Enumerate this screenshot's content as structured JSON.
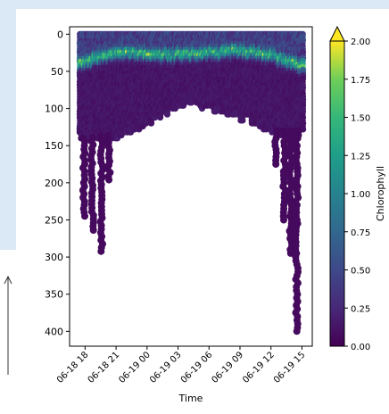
{
  "chart_data": {
    "type": "scatter",
    "xlabel": "Time",
    "ylabel": "",
    "x_ticks": [
      "06-18 18",
      "06-18 21",
      "06-19 00",
      "06-19 03",
      "06-19 06",
      "06-19 09",
      "06-19 12",
      "06-19 15"
    ],
    "x_range_hours": [
      -1.5,
      22.0
    ],
    "y_ticks": [
      0,
      50,
      100,
      150,
      200,
      250,
      300,
      350,
      400
    ],
    "ylim": [
      420,
      -10
    ],
    "y_inverted": true,
    "colorbar": {
      "label": "Chlorophyll",
      "ticks": [
        "0.00",
        "0.25",
        "0.50",
        "0.75",
        "1.00",
        "1.25",
        "1.50",
        "1.75",
        "2.00"
      ],
      "range": [
        0,
        2.0
      ],
      "colormap": "viridis",
      "extend": "max"
    },
    "deep_profiles": [
      {
        "t": -0.1,
        "depth": 245
      },
      {
        "t": 0.7,
        "depth": 265
      },
      {
        "t": 1.6,
        "depth": 295
      },
      {
        "t": 2.3,
        "depth": 200
      },
      {
        "t": 18.5,
        "depth": 175
      },
      {
        "t": 19.3,
        "depth": 250
      },
      {
        "t": 19.9,
        "depth": 295
      },
      {
        "t": 20.5,
        "depth": 400
      }
    ],
    "profile_bottom_trend": [
      {
        "t": 0,
        "depth": 140
      },
      {
        "t": 3,
        "depth": 135
      },
      {
        "t": 6,
        "depth": 120
      },
      {
        "t": 9,
        "depth": 92
      },
      {
        "t": 10.5,
        "depth": 92
      },
      {
        "t": 13,
        "depth": 100
      },
      {
        "t": 16,
        "depth": 115
      },
      {
        "t": 18.5,
        "depth": 130
      }
    ],
    "chlorophyll_max_depth": [
      {
        "t": 0,
        "depth": 38
      },
      {
        "t": 3,
        "depth": 25
      },
      {
        "t": 6,
        "depth": 26
      },
      {
        "t": 9,
        "depth": 28
      },
      {
        "t": 12,
        "depth": 26
      },
      {
        "t": 15,
        "depth": 22
      },
      {
        "t": 18,
        "depth": 28
      },
      {
        "t": 21,
        "depth": 42
      }
    ]
  }
}
